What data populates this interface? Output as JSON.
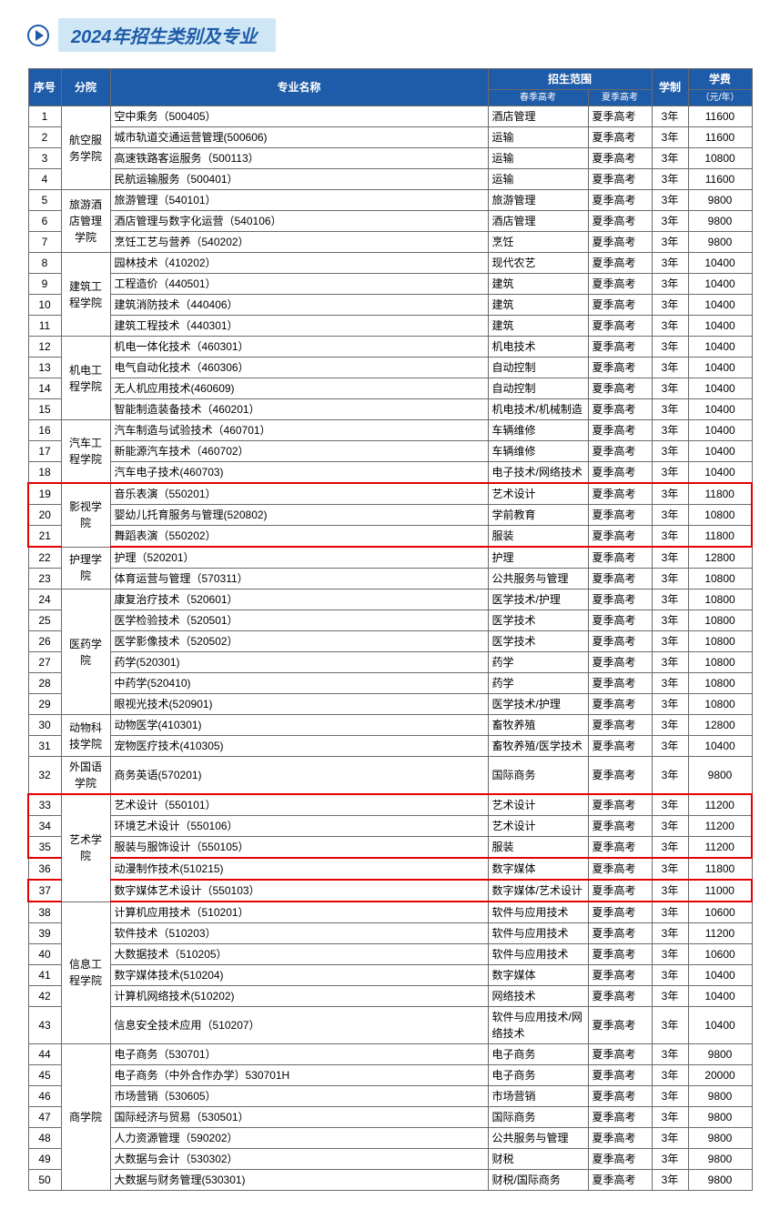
{
  "page_title": "2024年招生类别及专业",
  "header": {
    "idx": "序号",
    "dept": "分院",
    "name": "专业名称",
    "scope": "招生范围",
    "scope_spring": "春季高考",
    "scope_summer": "夏季高考",
    "dur": "学制",
    "fee": "学费",
    "fee_unit": "（元/年）"
  },
  "depts": [
    {
      "label": "航空服务学院",
      "span": 4
    },
    {
      "label": "旅游酒店管理学院",
      "span": 3
    },
    {
      "label": "建筑工程学院",
      "span": 4
    },
    {
      "label": "机电工程学院",
      "span": 4
    },
    {
      "label": "汽车工程学院",
      "span": 3
    },
    {
      "label": "影视学院",
      "span": 3
    },
    {
      "label": "护理学院",
      "span": 2
    },
    {
      "label": "医药学院",
      "span": 6
    },
    {
      "label": "动物科技学院",
      "span": 2
    },
    {
      "label": "外国语学院",
      "span": 1
    },
    {
      "label": "艺术学院",
      "span": 5
    },
    {
      "label": "信息工程学院",
      "span": 6
    },
    {
      "label": "商学院",
      "span": 7
    }
  ],
  "rows": [
    {
      "i": 1,
      "name": "空中乘务（500405）",
      "cat": "酒店管理",
      "exam": "夏季高考",
      "dur": "3年",
      "fee": "11600"
    },
    {
      "i": 2,
      "name": "城市轨道交通运营管理(500606)",
      "cat": "运输",
      "exam": "夏季高考",
      "dur": "3年",
      "fee": "11600"
    },
    {
      "i": 3,
      "name": "高速铁路客运服务（500113）",
      "cat": "运输",
      "exam": "夏季高考",
      "dur": "3年",
      "fee": "10800"
    },
    {
      "i": 4,
      "name": "民航运输服务（500401）",
      "cat": "运输",
      "exam": "夏季高考",
      "dur": "3年",
      "fee": "11600"
    },
    {
      "i": 5,
      "name": "旅游管理（540101）",
      "cat": "旅游管理",
      "exam": "夏季高考",
      "dur": "3年",
      "fee": "9800"
    },
    {
      "i": 6,
      "name": "酒店管理与数字化运营（540106）",
      "cat": "酒店管理",
      "exam": "夏季高考",
      "dur": "3年",
      "fee": "9800"
    },
    {
      "i": 7,
      "name": "烹饪工艺与营养（540202）",
      "cat": "烹饪",
      "exam": "夏季高考",
      "dur": "3年",
      "fee": "9800"
    },
    {
      "i": 8,
      "name": "园林技术（410202）",
      "cat": "现代农艺",
      "exam": "夏季高考",
      "dur": "3年",
      "fee": "10400"
    },
    {
      "i": 9,
      "name": "工程造价（440501）",
      "cat": "建筑",
      "exam": "夏季高考",
      "dur": "3年",
      "fee": "10400"
    },
    {
      "i": 10,
      "name": "建筑消防技术（440406）",
      "cat": "建筑",
      "exam": "夏季高考",
      "dur": "3年",
      "fee": "10400"
    },
    {
      "i": 11,
      "name": "建筑工程技术（440301）",
      "cat": "建筑",
      "exam": "夏季高考",
      "dur": "3年",
      "fee": "10400"
    },
    {
      "i": 12,
      "name": "机电一体化技术（460301）",
      "cat": "机电技术",
      "exam": "夏季高考",
      "dur": "3年",
      "fee": "10400"
    },
    {
      "i": 13,
      "name": "电气自动化技术（460306）",
      "cat": "自动控制",
      "exam": "夏季高考",
      "dur": "3年",
      "fee": "10400"
    },
    {
      "i": 14,
      "name": "无人机应用技术(460609)",
      "cat": "自动控制",
      "exam": "夏季高考",
      "dur": "3年",
      "fee": "10400"
    },
    {
      "i": 15,
      "name": "智能制造装备技术（460201）",
      "cat": "机电技术/机械制造",
      "exam": "夏季高考",
      "dur": "3年",
      "fee": "10400"
    },
    {
      "i": 16,
      "name": "汽车制造与试验技术（460701）",
      "cat": "车辆维修",
      "exam": "夏季高考",
      "dur": "3年",
      "fee": "10400"
    },
    {
      "i": 17,
      "name": "新能源汽车技术（460702）",
      "cat": "车辆维修",
      "exam": "夏季高考",
      "dur": "3年",
      "fee": "10400"
    },
    {
      "i": 18,
      "name": "汽车电子技术(460703)",
      "cat": "电子技术/网络技术",
      "exam": "夏季高考",
      "dur": "3年",
      "fee": "10400"
    },
    {
      "i": 19,
      "name": "音乐表演（550201）",
      "cat": "艺术设计",
      "exam": "夏季高考",
      "dur": "3年",
      "fee": "11800",
      "hl": "top"
    },
    {
      "i": 20,
      "name": "婴幼儿托育服务与管理(520802)",
      "cat": "学前教育",
      "exam": "夏季高考",
      "dur": "3年",
      "fee": "10800",
      "hl": "mid"
    },
    {
      "i": 21,
      "name": "舞蹈表演（550202）",
      "cat": "服装",
      "exam": "夏季高考",
      "dur": "3年",
      "fee": "11800",
      "hl": "bot"
    },
    {
      "i": 22,
      "name": "护理（520201）",
      "cat": "护理",
      "exam": "夏季高考",
      "dur": "3年",
      "fee": "12800"
    },
    {
      "i": 23,
      "name": "体育运营与管理（570311）",
      "cat": "公共服务与管理",
      "exam": "夏季高考",
      "dur": "3年",
      "fee": "10800"
    },
    {
      "i": 24,
      "name": "康复治疗技术（520601）",
      "cat": "医学技术/护理",
      "exam": "夏季高考",
      "dur": "3年",
      "fee": "10800"
    },
    {
      "i": 25,
      "name": "医学检验技术（520501）",
      "cat": "医学技术",
      "exam": "夏季高考",
      "dur": "3年",
      "fee": "10800"
    },
    {
      "i": 26,
      "name": "医学影像技术（520502）",
      "cat": "医学技术",
      "exam": "夏季高考",
      "dur": "3年",
      "fee": "10800"
    },
    {
      "i": 27,
      "name": "药学(520301)",
      "cat": "药学",
      "exam": "夏季高考",
      "dur": "3年",
      "fee": "10800"
    },
    {
      "i": 28,
      "name": "中药学(520410)",
      "cat": "药学",
      "exam": "夏季高考",
      "dur": "3年",
      "fee": "10800"
    },
    {
      "i": 29,
      "name": "眼视光技术(520901)",
      "cat": "医学技术/护理",
      "exam": "夏季高考",
      "dur": "3年",
      "fee": "10800"
    },
    {
      "i": 30,
      "name": "动物医学(410301)",
      "cat": "畜牧养殖",
      "exam": "夏季高考",
      "dur": "3年",
      "fee": "12800"
    },
    {
      "i": 31,
      "name": "宠物医疗技术(410305)",
      "cat": "畜牧养殖/医学技术",
      "exam": "夏季高考",
      "dur": "3年",
      "fee": "10400"
    },
    {
      "i": 32,
      "name": "商务英语(570201)",
      "cat": "国际商务",
      "exam": "夏季高考",
      "dur": "3年",
      "fee": "9800"
    },
    {
      "i": 33,
      "name": "艺术设计（550101）",
      "cat": "艺术设计",
      "exam": "夏季高考",
      "dur": "3年",
      "fee": "11200",
      "hl": "top"
    },
    {
      "i": 34,
      "name": "环境艺术设计（550106）",
      "cat": "艺术设计",
      "exam": "夏季高考",
      "dur": "3年",
      "fee": "11200",
      "hl": "mid"
    },
    {
      "i": 35,
      "name": "服装与服饰设计（550105）",
      "cat": "服装",
      "exam": "夏季高考",
      "dur": "3年",
      "fee": "11200",
      "hl": "bot"
    },
    {
      "i": 36,
      "name": "动漫制作技术(510215)",
      "cat": "数字媒体",
      "exam": "夏季高考",
      "dur": "3年",
      "fee": "11800"
    },
    {
      "i": 37,
      "name": "数字媒体艺术设计（550103）",
      "cat": "数字媒体/艺术设计",
      "exam": "夏季高考",
      "dur": "3年",
      "fee": "11000",
      "hl": "single"
    },
    {
      "i": 38,
      "name": "计算机应用技术（510201）",
      "cat": "软件与应用技术",
      "exam": "夏季高考",
      "dur": "3年",
      "fee": "10600"
    },
    {
      "i": 39,
      "name": "软件技术（510203）",
      "cat": "软件与应用技术",
      "exam": "夏季高考",
      "dur": "3年",
      "fee": "11200"
    },
    {
      "i": 40,
      "name": "大数据技术（510205）",
      "cat": "软件与应用技术",
      "exam": "夏季高考",
      "dur": "3年",
      "fee": "10600"
    },
    {
      "i": 41,
      "name": "数字媒体技术(510204)",
      "cat": "数字媒体",
      "exam": "夏季高考",
      "dur": "3年",
      "fee": "10400"
    },
    {
      "i": 42,
      "name": "计算机网络技术(510202)",
      "cat": "网络技术",
      "exam": "夏季高考",
      "dur": "3年",
      "fee": "10400"
    },
    {
      "i": 43,
      "name": "信息安全技术应用（510207）",
      "cat": "软件与应用技术/网络技术",
      "exam": "夏季高考",
      "dur": "3年",
      "fee": "10400"
    },
    {
      "i": 44,
      "name": "电子商务（530701）",
      "cat": "电子商务",
      "exam": "夏季高考",
      "dur": "3年",
      "fee": "9800"
    },
    {
      "i": 45,
      "name": "电子商务（中外合作办学）530701H",
      "cat": "电子商务",
      "exam": "夏季高考",
      "dur": "3年",
      "fee": "20000"
    },
    {
      "i": 46,
      "name": "市场营销（530605）",
      "cat": "市场营销",
      "exam": "夏季高考",
      "dur": "3年",
      "fee": "9800"
    },
    {
      "i": 47,
      "name": "国际经济与贸易（530501）",
      "cat": "国际商务",
      "exam": "夏季高考",
      "dur": "3年",
      "fee": "9800"
    },
    {
      "i": 48,
      "name": "人力资源管理（590202）",
      "cat": "公共服务与管理",
      "exam": "夏季高考",
      "dur": "3年",
      "fee": "9800"
    },
    {
      "i": 49,
      "name": "大数据与会计（530302）",
      "cat": "财税",
      "exam": "夏季高考",
      "dur": "3年",
      "fee": "9800"
    },
    {
      "i": 50,
      "name": "大数据与财务管理(530301)",
      "cat": "财税/国际商务",
      "exam": "夏季高考",
      "dur": "3年",
      "fee": "9800"
    }
  ],
  "dept_start_idx": [
    1,
    5,
    8,
    12,
    16,
    19,
    22,
    24,
    30,
    32,
    33,
    38,
    44
  ]
}
